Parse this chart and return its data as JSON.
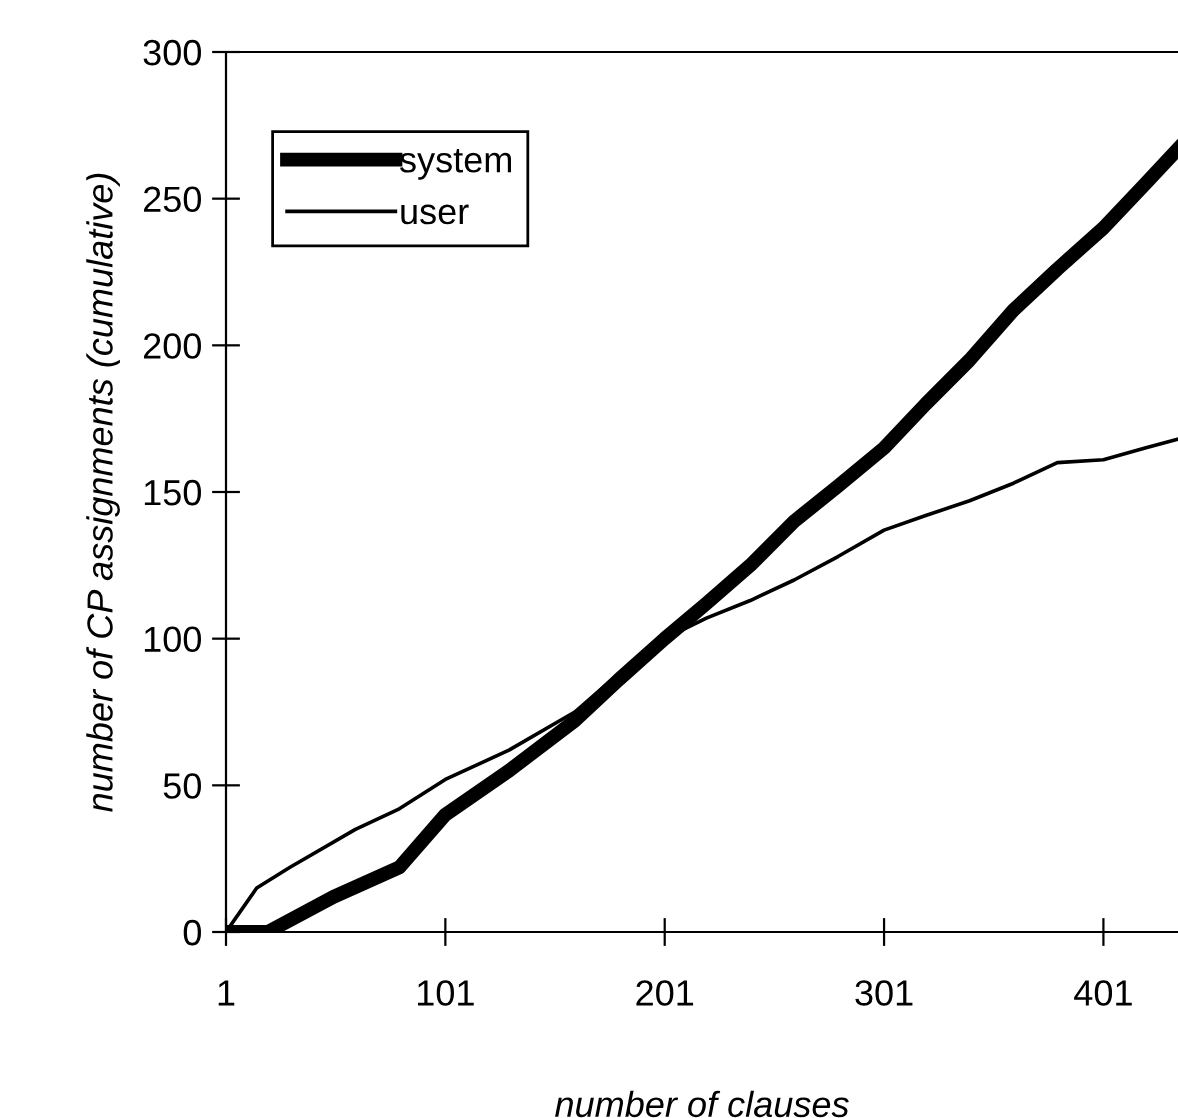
{
  "chart_data": {
    "type": "line",
    "xlabel": "number of clauses",
    "ylabel": "number of CP assignments (cumulative)",
    "xlim": [
      1,
      435
    ],
    "xticks": [
      1,
      101,
      201,
      301,
      401
    ],
    "ylim": [
      0,
      300
    ],
    "yticks": [
      0,
      50,
      100,
      150,
      200,
      250,
      300
    ],
    "grid": false,
    "legend": "top left",
    "marker": "none",
    "line_style": "solid",
    "series": [
      {
        "name": "system",
        "color": "#000000",
        "x": [
          1,
          20,
          50,
          80,
          101,
          130,
          160,
          180,
          201,
          220,
          240,
          260,
          280,
          301,
          320,
          340,
          360,
          380,
          401,
          420,
          435
        ],
        "values": [
          0,
          0,
          12,
          22,
          40,
          55,
          72,
          86,
          100,
          112,
          125,
          140,
          152,
          165,
          180,
          195,
          212,
          226,
          240,
          255,
          267
        ]
      },
      {
        "name": "user",
        "color": "#000000",
        "x": [
          1,
          15,
          30,
          60,
          80,
          101,
          130,
          160,
          180,
          201,
          220,
          240,
          260,
          280,
          301,
          320,
          340,
          360,
          380,
          401,
          420,
          435
        ],
        "values": [
          0,
          15,
          22,
          35,
          42,
          52,
          62,
          75,
          88,
          100,
          107,
          113,
          120,
          128,
          137,
          142,
          147,
          153,
          160,
          161,
          165,
          168
        ]
      }
    ]
  }
}
